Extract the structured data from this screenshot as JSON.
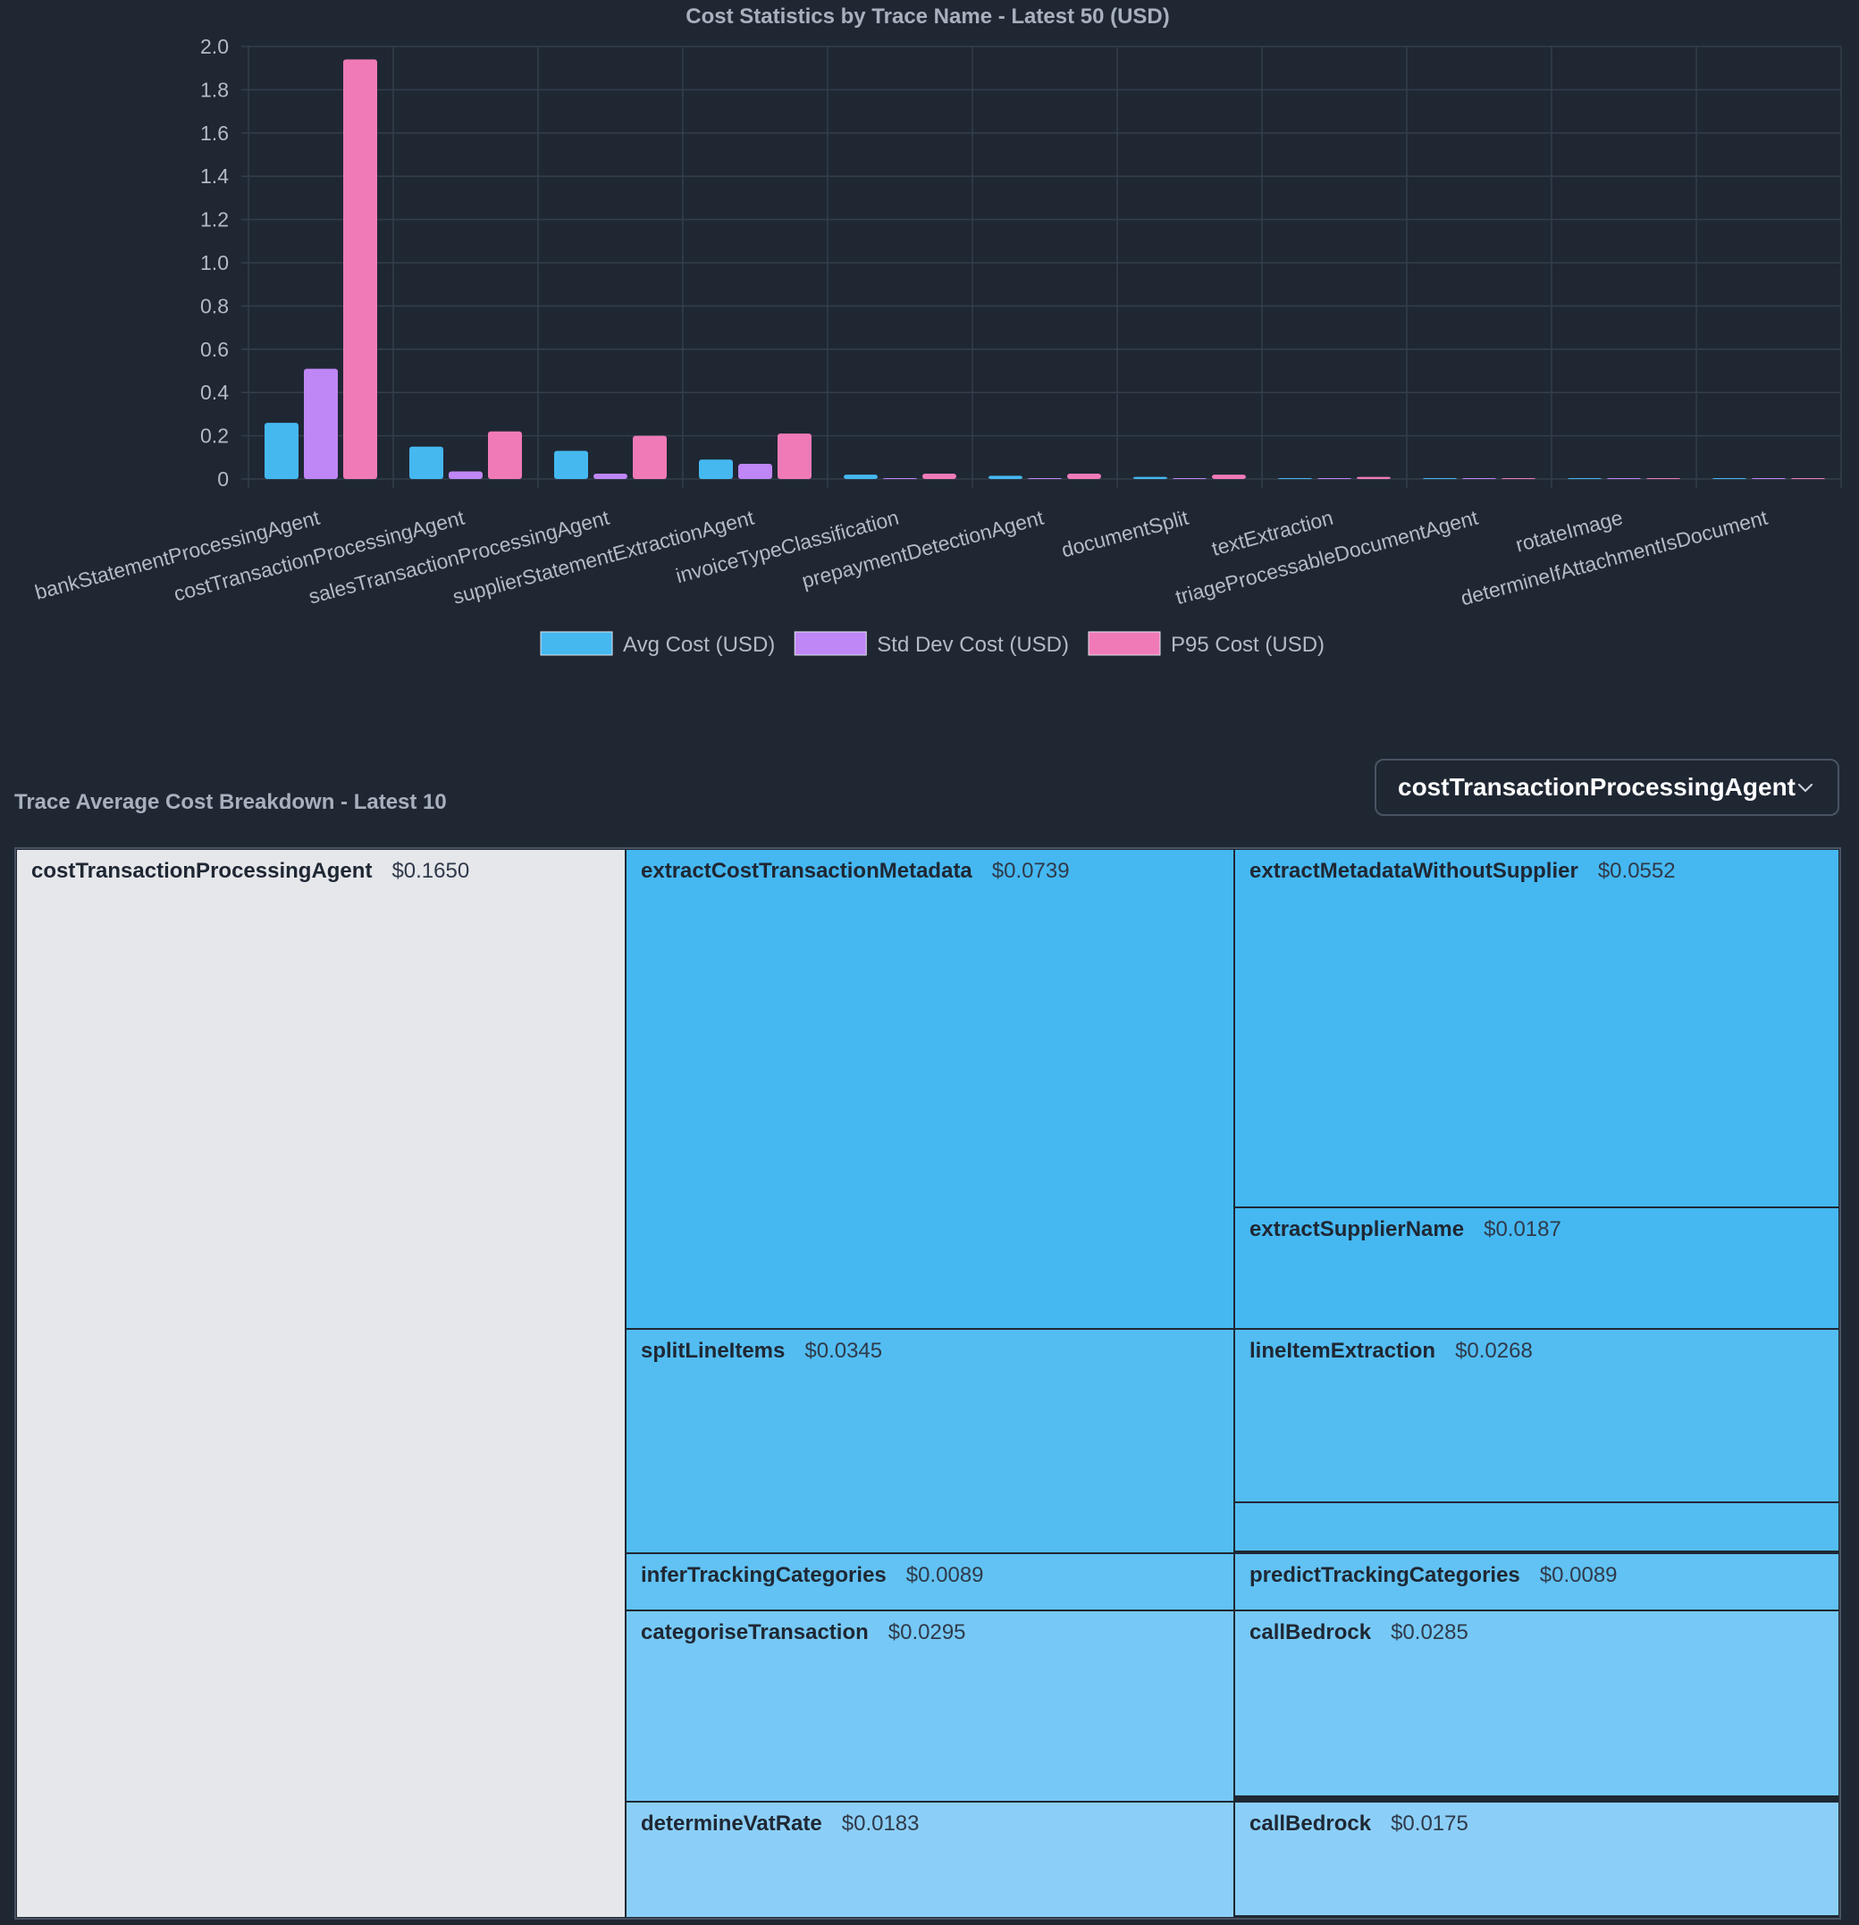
{
  "chart_data": {
    "type": "bar",
    "title": "Cost Statistics by Trace Name - Latest 50 (USD)",
    "xlabel": "",
    "ylabel": "",
    "ylim": [
      0,
      2.0
    ],
    "yticks": [
      "0",
      "0.2",
      "0.4",
      "0.6",
      "0.8",
      "1.0",
      "1.2",
      "1.4",
      "1.6",
      "1.8",
      "2.0"
    ],
    "grid": true,
    "legend_position": "bottom",
    "categories": [
      "bankStatementProcessingAgent",
      "costTransactionProcessingAgent",
      "salesTransactionProcessingAgent",
      "supplierStatementExtractionAgent",
      "invoiceTypeClassification",
      "prepaymentDetectionAgent",
      "documentSplit",
      "textExtraction",
      "triageProcessableDocumentAgent",
      "rotateImage",
      "determineIfAttachmentIsDocument"
    ],
    "series": [
      {
        "name": "Avg Cost (USD)",
        "color": "#45b8f0",
        "values": [
          0.26,
          0.15,
          0.13,
          0.09,
          0.02,
          0.015,
          0.01,
          0.003,
          0.003,
          0.002,
          0.002
        ]
      },
      {
        "name": "Std Dev Cost (USD)",
        "color": "#bf86f5",
        "values": [
          0.51,
          0.035,
          0.025,
          0.07,
          0.002,
          0.002,
          0.003,
          0.002,
          0.002,
          0.002,
          0.002
        ]
      },
      {
        "name": "P95 Cost (USD)",
        "color": "#f07ab8",
        "values": [
          1.94,
          0.22,
          0.2,
          0.21,
          0.025,
          0.025,
          0.02,
          0.01,
          0.004,
          0.003,
          0.003
        ]
      }
    ]
  },
  "breakdown": {
    "title": "Trace Average Cost Breakdown - Latest 10",
    "selected_trace": "costTransactionProcessingAgent"
  },
  "treemap": {
    "nodes": [
      {
        "name": "costTransactionProcessingAgent",
        "cost": "$0.1650",
        "color": "#e5e7eb"
      },
      {
        "name": "extractCostTransactionMetadata",
        "cost": "$0.0739",
        "color": "#45b8f2"
      },
      {
        "name": "extractMetadataWithoutSupplier",
        "cost": "$0.0552",
        "color": "#45b8f2"
      },
      {
        "name": "extractSupplierName",
        "cost": "$0.0187",
        "color": "#45b8f2"
      },
      {
        "name": "splitLineItems",
        "cost": "$0.0345",
        "color": "#53bdf2"
      },
      {
        "name": "lineItemExtraction",
        "cost": "$0.0268",
        "color": "#53bdf2"
      },
      {
        "name": "",
        "cost": "",
        "color": "#53bdf2"
      },
      {
        "name": "inferTrackingCategories",
        "cost": "$0.0089",
        "color": "#61c2f3"
      },
      {
        "name": "predictTrackingCategories",
        "cost": "$0.0089",
        "color": "#61c2f3"
      },
      {
        "name": "categoriseTransaction",
        "cost": "$0.0295",
        "color": "#76c9f6"
      },
      {
        "name": "callBedrock",
        "cost": "$0.0285",
        "color": "#76c9f6"
      },
      {
        "name": "determineVatRate",
        "cost": "$0.0183",
        "color": "#8bcff8"
      },
      {
        "name": "callBedrock",
        "cost": "$0.0175",
        "color": "#8bcff8"
      }
    ]
  }
}
